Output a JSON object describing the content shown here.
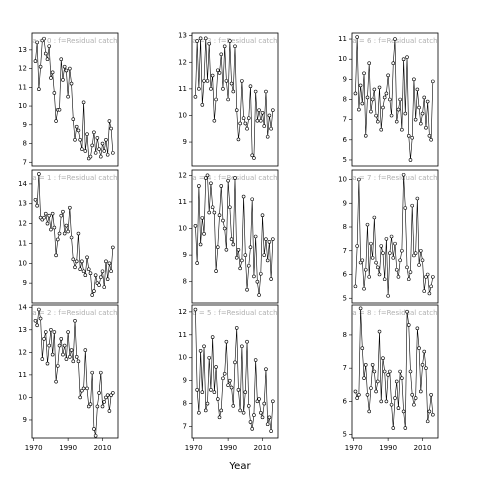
{
  "x_label": "Year",
  "chart_data": [
    {
      "type": "line",
      "title": "a = 0 : f=Residual catch",
      "color": "#000000",
      "x": [
        1971,
        1972,
        1973,
        1974,
        1975,
        1976,
        1977,
        1978,
        1979,
        1980,
        1981,
        1982,
        1983,
        1984,
        1985,
        1986,
        1987,
        1988,
        1989,
        1990,
        1991,
        1992,
        1993,
        1994,
        1995,
        1996,
        1997,
        1998,
        1999,
        2000,
        2001,
        2002,
        2003,
        2004,
        2005,
        2006,
        2007,
        2008,
        2009,
        2010,
        2011,
        2012,
        2013,
        2014,
        2015,
        2016
      ],
      "values": [
        12.4,
        13.4,
        10.9,
        12.1,
        13.5,
        13.6,
        12.8,
        12.5,
        13.2,
        11.5,
        11.8,
        10.7,
        9.2,
        9.8,
        9.8,
        12.5,
        11.4,
        12.1,
        11.9,
        10.5,
        12.0,
        11.2,
        9.3,
        8.2,
        8.9,
        8.7,
        8.2,
        7.7,
        10.2,
        7.6,
        8.5,
        7.2,
        7.3,
        7.9,
        8.6,
        7.5,
        8.3,
        7.7,
        7.3,
        8.0,
        7.6,
        8.2,
        7.4,
        9.2,
        8.8,
        7.5
      ],
      "xlim": [
        1969,
        2019
      ],
      "ylim": [
        6.8,
        13.9
      ],
      "yticks": [
        7,
        8,
        9,
        10,
        11,
        12,
        13
      ]
    },
    {
      "type": "line",
      "title": "a = 1 : f=Residual catch",
      "color": "#000000",
      "x": [
        1971,
        1972,
        1973,
        1974,
        1975,
        1976,
        1977,
        1978,
        1979,
        1980,
        1981,
        1982,
        1983,
        1984,
        1985,
        1986,
        1987,
        1988,
        1989,
        1990,
        1991,
        1992,
        1993,
        1994,
        1995,
        1996,
        1997,
        1998,
        1999,
        2000,
        2001,
        2002,
        2003,
        2004,
        2005,
        2006,
        2007,
        2008,
        2009,
        2010,
        2011,
        2012,
        2013,
        2014,
        2015,
        2016
      ],
      "values": [
        13.2,
        12.9,
        14.5,
        12.3,
        12.2,
        12.3,
        12.5,
        12.0,
        12.4,
        11.7,
        12.5,
        11.8,
        10.4,
        11.2,
        11.5,
        12.4,
        12.6,
        11.5,
        11.9,
        11.6,
        12.8,
        11.3,
        10.2,
        9.8,
        10.1,
        11.5,
        9.7,
        10.1,
        9.6,
        9.4,
        10.3,
        9.7,
        9.5,
        8.4,
        8.6,
        9.4,
        9.0,
        8.9,
        9.3,
        9.6,
        8.8,
        10.1,
        9.2,
        10.0,
        9.6,
        10.8
      ],
      "xlim": [
        1969,
        2019
      ],
      "ylim": [
        8.0,
        14.7
      ],
      "yticks": [
        9,
        10,
        11,
        12,
        13,
        14
      ]
    },
    {
      "type": "line",
      "title": "a = 2 : f=Residual catch",
      "color": "#000000",
      "x": [
        1971,
        1972,
        1973,
        1974,
        1975,
        1976,
        1977,
        1978,
        1979,
        1980,
        1981,
        1982,
        1983,
        1984,
        1985,
        1986,
        1987,
        1988,
        1989,
        1990,
        1991,
        1992,
        1993,
        1994,
        1995,
        1996,
        1997,
        1998,
        1999,
        2000,
        2001,
        2002,
        2003,
        2004,
        2005,
        2006,
        2007,
        2008,
        2009,
        2010,
        2011,
        2012,
        2013,
        2014,
        2015,
        2016
      ],
      "values": [
        13.4,
        13.2,
        13.9,
        13.5,
        11.7,
        12.6,
        12.9,
        11.5,
        12.3,
        13.0,
        11.9,
        12.9,
        10.7,
        11.4,
        12.3,
        12.6,
        11.9,
        12.3,
        11.7,
        12.9,
        11.8,
        12.1,
        11.6,
        13.4,
        11.8,
        11.6,
        10.0,
        10.3,
        10.4,
        12.1,
        10.4,
        9.6,
        9.7,
        11.1,
        8.6,
        8.3,
        9.6,
        10.2,
        11.1,
        9.6,
        9.8,
        10.0,
        10.1,
        9.4,
        10.1,
        10.2
      ],
      "xlim": [
        1969,
        2019
      ],
      "ylim": [
        8.2,
        14.1
      ],
      "yticks": [
        9,
        10,
        11,
        12,
        13,
        14
      ],
      "xticks": [
        1970,
        1990,
        2010
      ]
    },
    {
      "type": "line",
      "title": "a = 3 : f=Residual catch",
      "color": "#000000",
      "x": [
        1971,
        1972,
        1973,
        1974,
        1975,
        1976,
        1977,
        1978,
        1979,
        1980,
        1981,
        1982,
        1983,
        1984,
        1985,
        1986,
        1987,
        1988,
        1989,
        1990,
        1991,
        1992,
        1993,
        1994,
        1995,
        1996,
        1997,
        1998,
        1999,
        2000,
        2001,
        2002,
        2003,
        2004,
        2005,
        2006,
        2007,
        2008,
        2009,
        2010,
        2011,
        2012,
        2013,
        2014,
        2015,
        2016
      ],
      "values": [
        10.7,
        12.8,
        11.0,
        12.9,
        10.4,
        11.3,
        12.9,
        11.3,
        12.7,
        11.0,
        11.5,
        9.8,
        10.6,
        11.7,
        11.6,
        12.3,
        11.0,
        12.6,
        11.3,
        10.6,
        12.8,
        11.2,
        10.9,
        12.6,
        10.2,
        9.1,
        9.7,
        11.3,
        9.9,
        9.7,
        9.5,
        9.9,
        11.1,
        8.5,
        8.4,
        10.9,
        9.8,
        10.2,
        9.8,
        10.1,
        9.6,
        10.9,
        9.2,
        10.0,
        9.5,
        10.2
      ],
      "xlim": [
        1969,
        2019
      ],
      "ylim": [
        8.1,
        13.1
      ],
      "yticks": [
        9,
        10,
        11,
        12,
        13
      ]
    },
    {
      "type": "line",
      "title": "a = 4 : f=Residual catch",
      "color": "#000000",
      "x": [
        1971,
        1972,
        1973,
        1974,
        1975,
        1976,
        1977,
        1978,
        1979,
        1980,
        1981,
        1982,
        1983,
        1984,
        1985,
        1986,
        1987,
        1988,
        1989,
        1990,
        1991,
        1992,
        1993,
        1994,
        1995,
        1996,
        1997,
        1998,
        1999,
        2000,
        2001,
        2002,
        2003,
        2004,
        2005,
        2006,
        2007,
        2008,
        2009,
        2010,
        2011,
        2012,
        2013,
        2014,
        2015,
        2016
      ],
      "values": [
        10.1,
        8.7,
        11.6,
        9.4,
        10.4,
        9.8,
        11.9,
        12.0,
        10.6,
        11.7,
        10.8,
        10.6,
        8.4,
        9.3,
        10.5,
        11.6,
        10.3,
        10.0,
        9.2,
        11.8,
        10.8,
        9.6,
        9.4,
        11.9,
        8.9,
        9.2,
        8.5,
        8.8,
        11.2,
        9.0,
        7.7,
        8.6,
        9.3,
        11.1,
        8.2,
        9.7,
        8.0,
        7.5,
        8.3,
        10.5,
        9.0,
        9.6,
        8.8,
        9.5,
        8.1,
        9.6
      ],
      "xlim": [
        1969,
        2019
      ],
      "ylim": [
        7.2,
        12.2
      ],
      "yticks": [
        8,
        9,
        10,
        11,
        12
      ]
    },
    {
      "type": "line",
      "title": "a = 5 : f=Residual catch",
      "color": "#000000",
      "x": [
        1971,
        1972,
        1973,
        1974,
        1975,
        1976,
        1977,
        1978,
        1979,
        1980,
        1981,
        1982,
        1983,
        1984,
        1985,
        1986,
        1987,
        1988,
        1989,
        1990,
        1991,
        1992,
        1993,
        1994,
        1995,
        1996,
        1997,
        1998,
        1999,
        2000,
        2001,
        2002,
        2003,
        2004,
        2005,
        2006,
        2007,
        2008,
        2009,
        2010,
        2011,
        2012,
        2013,
        2014,
        2015,
        2016
      ],
      "values": [
        12.1,
        8.6,
        7.6,
        10.3,
        8.5,
        10.5,
        7.7,
        8.0,
        10.0,
        8.6,
        10.9,
        8.5,
        9.6,
        8.2,
        7.4,
        7.7,
        9.1,
        9.3,
        10.7,
        8.8,
        9.0,
        8.7,
        7.9,
        9.8,
        11.3,
        8.6,
        7.7,
        10.5,
        7.6,
        8.5,
        10.7,
        7.9,
        7.2,
        6.9,
        7.5,
        9.9,
        8.1,
        8.2,
        7.6,
        7.4,
        8.0,
        9.5,
        7.1,
        7.4,
        6.8,
        8.1
      ],
      "xlim": [
        1969,
        2019
      ],
      "ylim": [
        6.5,
        12.3
      ],
      "yticks": [
        7,
        8,
        9,
        10,
        11,
        12
      ],
      "xticks": [
        1970,
        1990,
        2010
      ]
    },
    {
      "type": "line",
      "title": "a = 6 : f=Residual catch",
      "color": "#000000",
      "x": [
        1971,
        1972,
        1973,
        1974,
        1975,
        1976,
        1977,
        1978,
        1979,
        1980,
        1981,
        1982,
        1983,
        1984,
        1985,
        1986,
        1987,
        1988,
        1989,
        1990,
        1991,
        1992,
        1993,
        1994,
        1995,
        1996,
        1997,
        1998,
        1999,
        2000,
        2001,
        2002,
        2003,
        2004,
        2005,
        2006,
        2007,
        2008,
        2009,
        2010,
        2011,
        2012,
        2013,
        2014,
        2015,
        2016
      ],
      "values": [
        8.3,
        11.1,
        7.5,
        8.7,
        7.8,
        9.3,
        6.2,
        8.1,
        9.8,
        7.4,
        8.0,
        8.5,
        7.2,
        6.9,
        8.6,
        6.5,
        7.6,
        8.1,
        8.3,
        9.2,
        8.0,
        7.2,
        9.8,
        11.0,
        6.9,
        7.5,
        8.0,
        6.5,
        10.0,
        7.3,
        10.1,
        6.2,
        5.0,
        6.1,
        9.0,
        7.0,
        8.5,
        7.6,
        6.8,
        7.3,
        8.1,
        6.6,
        7.9,
        6.2,
        6.0,
        8.9
      ],
      "xlim": [
        1969,
        2019
      ],
      "ylim": [
        4.7,
        11.3
      ],
      "yticks": [
        5,
        6,
        7,
        8,
        9,
        10,
        11
      ]
    },
    {
      "type": "line",
      "title": "a = 7 : f=Residual catch",
      "color": "#000000",
      "x": [
        1971,
        1972,
        1973,
        1974,
        1975,
        1976,
        1977,
        1978,
        1979,
        1980,
        1981,
        1982,
        1983,
        1984,
        1985,
        1986,
        1987,
        1988,
        1989,
        1990,
        1991,
        1992,
        1993,
        1994,
        1995,
        1996,
        1997,
        1998,
        1999,
        2000,
        2001,
        2002,
        2003,
        2004,
        2005,
        2006,
        2007,
        2008,
        2009,
        2010,
        2011,
        2012,
        2013,
        2014,
        2015,
        2016
      ],
      "values": [
        5.5,
        7.2,
        10.0,
        6.5,
        6.6,
        5.4,
        6.2,
        8.1,
        5.9,
        7.3,
        6.7,
        8.4,
        6.5,
        6.3,
        6.0,
        7.2,
        6.9,
        5.8,
        7.5,
        5.1,
        6.9,
        7.6,
        6.7,
        7.3,
        6.2,
        5.9,
        6.6,
        7.0,
        10.2,
        8.8,
        6.3,
        5.8,
        6.1,
        8.9,
        6.8,
        6.9,
        9.2,
        6.4,
        7.0,
        6.6,
        5.3,
        5.9,
        6.0,
        5.2,
        5.5,
        5.9
      ],
      "xlim": [
        1969,
        2019
      ],
      "ylim": [
        4.8,
        10.4
      ],
      "yticks": [
        5,
        6,
        7,
        8,
        9,
        10
      ]
    },
    {
      "type": "line",
      "title": "a = 8 : f=Residual catch",
      "color": "#000000",
      "x": [
        1971,
        1972,
        1973,
        1974,
        1975,
        1976,
        1977,
        1978,
        1979,
        1980,
        1981,
        1982,
        1983,
        1984,
        1985,
        1986,
        1987,
        1988,
        1989,
        1990,
        1991,
        1992,
        1993,
        1994,
        1995,
        1996,
        1997,
        1998,
        1999,
        2000,
        2001,
        2002,
        2003,
        2004,
        2005,
        2006,
        2007,
        2008,
        2009,
        2010,
        2011,
        2012,
        2013,
        2014,
        2015,
        2016
      ],
      "values": [
        6.3,
        6.1,
        6.2,
        8.8,
        7.6,
        6.7,
        7.1,
        6.2,
        5.7,
        6.4,
        7.1,
        6.9,
        6.3,
        6.6,
        8.1,
        6.0,
        7.3,
        6.9,
        6.0,
        6.8,
        6.9,
        5.9,
        5.2,
        6.1,
        6.6,
        5.8,
        6.9,
        6.7,
        5.7,
        5.2,
        8.7,
        8.3,
        6.9,
        6.2,
        5.9,
        6.1,
        8.2,
        7.6,
        6.3,
        7.1,
        7.5,
        7.0,
        5.4,
        5.7,
        6.2,
        5.6
      ],
      "xlim": [
        1969,
        2019
      ],
      "ylim": [
        4.9,
        8.9
      ],
      "yticks": [
        5,
        6,
        7,
        8
      ],
      "xticks": [
        1970,
        1990,
        2010
      ]
    }
  ]
}
